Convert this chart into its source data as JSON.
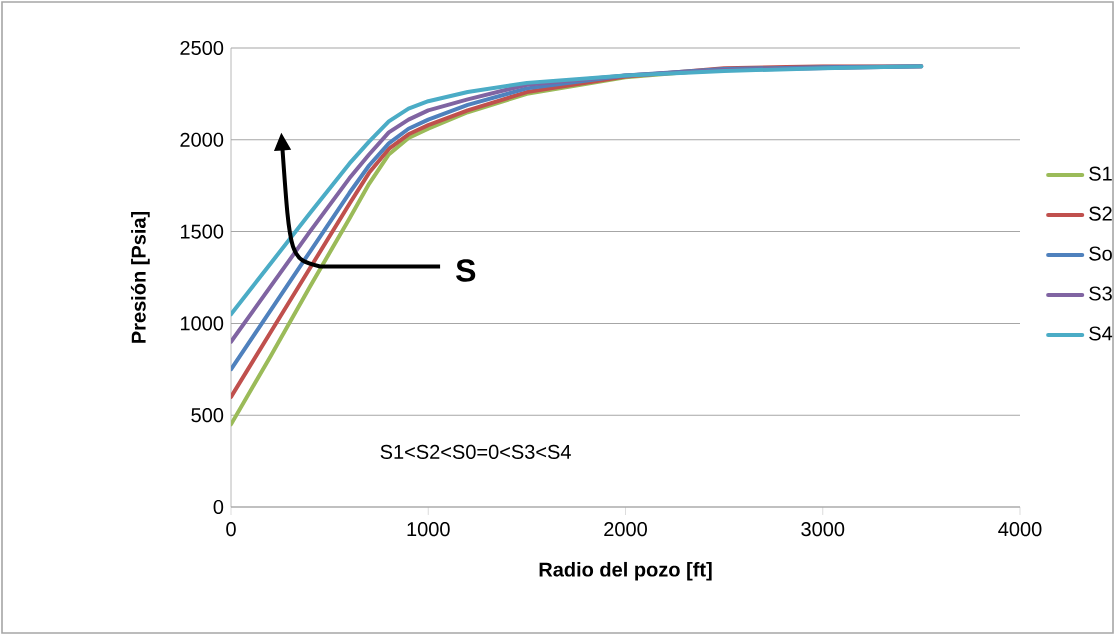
{
  "chart_data": {
    "type": "line",
    "xlabel": "Radio del pozo [ft]",
    "ylabel": "Presión [Psia]",
    "xlim": [
      0,
      4000
    ],
    "xticks": [
      0,
      1000,
      2000,
      3000,
      4000
    ],
    "ylim": [
      0,
      2500
    ],
    "yticks": [
      0,
      500,
      1000,
      1500,
      2000,
      2500
    ],
    "grid": "y",
    "legend": "right",
    "marker": "none",
    "line_style": "solid",
    "annotations": [
      "S",
      "S1<S2<S0=0<S3<S4"
    ],
    "x": [
      0,
      200,
      400,
      600,
      700,
      800,
      900,
      1000,
      1200,
      1500,
      2000,
      2500,
      3000,
      3500
    ],
    "series": [
      {
        "name": "S1",
        "color": "#9bbb59",
        "values": [
          450,
          820,
          1200,
          1570,
          1760,
          1920,
          2010,
          2060,
          2150,
          2250,
          2340,
          2385,
          null,
          null
        ]
      },
      {
        "name": "S2",
        "color": "#c0504d",
        "values": [
          600,
          950,
          1300,
          1650,
          1820,
          1950,
          2030,
          2080,
          2160,
          2260,
          2345,
          2390,
          2400,
          2400
        ]
      },
      {
        "name": "So",
        "color": "#4f81bd",
        "values": [
          750,
          1070,
          1390,
          1710,
          1860,
          1980,
          2060,
          2110,
          2190,
          2280,
          2350,
          2385,
          2395,
          2400
        ]
      },
      {
        "name": "S3",
        "color": "#8064a2",
        "values": [
          900,
          1200,
          1500,
          1790,
          1920,
          2040,
          2110,
          2160,
          2220,
          2300,
          2350,
          2380,
          2390,
          2400
        ]
      },
      {
        "name": "S4",
        "color": "#4bacc6",
        "values": [
          1050,
          1325,
          1600,
          1870,
          1990,
          2100,
          2170,
          2210,
          2260,
          2310,
          2350,
          2375,
          2390,
          2400
        ]
      }
    ]
  }
}
